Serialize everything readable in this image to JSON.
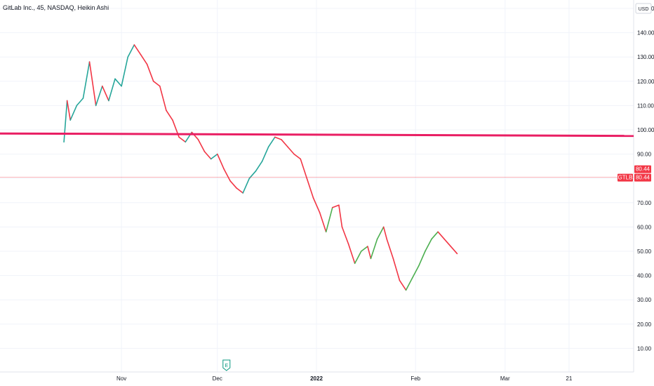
{
  "chart_data": {
    "type": "candlestick",
    "title": "GitLab Inc., 45, NASDAQ, Heikin Ashi",
    "currency": "USD",
    "ylim": [
      0,
      150
    ],
    "y_ticks": [
      "150.00",
      "140.00",
      "130.00",
      "120.00",
      "110.00",
      "100.00",
      "90.00",
      "80.00",
      "70.00",
      "60.00",
      "50.00",
      "40.00",
      "30.00",
      "20.00",
      "10.00"
    ],
    "x_ticks": [
      {
        "label": "Nov",
        "date": "2021-11-01",
        "bold": false
      },
      {
        "label": "Dec",
        "date": "2021-12-01",
        "bold": false
      },
      {
        "label": "2022",
        "date": "2022-01-01",
        "bold": true
      },
      {
        "label": "Feb",
        "date": "2022-02-01",
        "bold": false
      },
      {
        "label": "Mar",
        "date": "2022-03-01",
        "bold": false
      },
      {
        "label": "21",
        "date": "2022-03-21",
        "bold": false
      }
    ],
    "date_range": [
      "2021-09-24",
      "2022-04-10"
    ],
    "series": [
      {
        "name": "GTLB",
        "points": [
          {
            "date": "2021-10-14",
            "close": 95,
            "up": true
          },
          {
            "date": "2021-10-15",
            "close": 112,
            "up": true
          },
          {
            "date": "2021-10-16",
            "close": 104,
            "up": false
          },
          {
            "date": "2021-10-18",
            "close": 110,
            "up": true
          },
          {
            "date": "2021-10-20",
            "close": 113,
            "up": true
          },
          {
            "date": "2021-10-22",
            "close": 128,
            "up": true
          },
          {
            "date": "2021-10-24",
            "close": 110,
            "up": false
          },
          {
            "date": "2021-10-26",
            "close": 118,
            "up": true
          },
          {
            "date": "2021-10-28",
            "close": 112,
            "up": false
          },
          {
            "date": "2021-10-30",
            "close": 121,
            "up": true
          },
          {
            "date": "2021-11-01",
            "close": 118,
            "up": true
          },
          {
            "date": "2021-11-03",
            "close": 130,
            "up": true
          },
          {
            "date": "2021-11-05",
            "close": 135,
            "up": true
          },
          {
            "date": "2021-11-07",
            "close": 131,
            "up": false
          },
          {
            "date": "2021-11-09",
            "close": 127,
            "up": false
          },
          {
            "date": "2021-11-11",
            "close": 120,
            "up": false
          },
          {
            "date": "2021-11-13",
            "close": 118,
            "up": false
          },
          {
            "date": "2021-11-15",
            "close": 108,
            "up": false
          },
          {
            "date": "2021-11-17",
            "close": 104,
            "up": false
          },
          {
            "date": "2021-11-19",
            "close": 97,
            "up": false
          },
          {
            "date": "2021-11-21",
            "close": 95,
            "up": false
          },
          {
            "date": "2021-11-23",
            "close": 99,
            "up": true
          },
          {
            "date": "2021-11-25",
            "close": 96,
            "up": false
          },
          {
            "date": "2021-11-27",
            "close": 91,
            "up": false
          },
          {
            "date": "2021-11-29",
            "close": 88,
            "up": false
          },
          {
            "date": "2021-12-01",
            "close": 90,
            "up": true
          },
          {
            "date": "2021-12-03",
            "close": 84,
            "up": false
          },
          {
            "date": "2021-12-05",
            "close": 79,
            "up": false
          },
          {
            "date": "2021-12-07",
            "close": 76,
            "up": false
          },
          {
            "date": "2021-12-09",
            "close": 74,
            "up": false
          },
          {
            "date": "2021-12-11",
            "close": 80,
            "up": true
          },
          {
            "date": "2021-12-13",
            "close": 83,
            "up": true
          },
          {
            "date": "2021-12-15",
            "close": 87,
            "up": true
          },
          {
            "date": "2021-12-17",
            "close": 93,
            "up": true
          },
          {
            "date": "2021-12-19",
            "close": 97,
            "up": true
          },
          {
            "date": "2021-12-21",
            "close": 96,
            "up": false
          },
          {
            "date": "2021-12-23",
            "close": 93,
            "up": false
          },
          {
            "date": "2021-12-25",
            "close": 90,
            "up": false
          },
          {
            "date": "2021-12-27",
            "close": 88,
            "up": false
          },
          {
            "date": "2021-12-29",
            "close": 80,
            "up": false
          },
          {
            "date": "2021-12-31",
            "close": 72,
            "up": false
          },
          {
            "date": "2022-01-02",
            "close": 66,
            "up": false
          },
          {
            "date": "2022-01-04",
            "close": 58,
            "up": false
          },
          {
            "date": "2022-01-05",
            "close": 63,
            "up": true
          },
          {
            "date": "2022-01-06",
            "close": 68,
            "up": true
          },
          {
            "date": "2022-01-08",
            "close": 69,
            "up": false
          },
          {
            "date": "2022-01-09",
            "close": 60,
            "up": false
          },
          {
            "date": "2022-01-11",
            "close": 53,
            "up": false
          },
          {
            "date": "2022-01-13",
            "close": 45,
            "up": false
          },
          {
            "date": "2022-01-15",
            "close": 50,
            "up": true
          },
          {
            "date": "2022-01-17",
            "close": 52,
            "up": true
          },
          {
            "date": "2022-01-18",
            "close": 47,
            "up": false
          },
          {
            "date": "2022-01-20",
            "close": 55,
            "up": true
          },
          {
            "date": "2022-01-22",
            "close": 60,
            "up": true
          },
          {
            "date": "2022-01-23",
            "close": 55,
            "up": false
          },
          {
            "date": "2022-01-25",
            "close": 47,
            "up": false
          },
          {
            "date": "2022-01-27",
            "close": 38,
            "up": false
          },
          {
            "date": "2022-01-29",
            "close": 34,
            "up": false
          },
          {
            "date": "2022-01-31",
            "close": 39,
            "up": true
          },
          {
            "date": "2022-02-02",
            "close": 44,
            "up": true
          },
          {
            "date": "2022-02-04",
            "close": 50,
            "up": true
          },
          {
            "date": "2022-02-06",
            "close": 55,
            "up": true
          },
          {
            "date": "2022-02-08",
            "close": 58,
            "up": true
          },
          {
            "date": "2022-02-10",
            "close": 55,
            "up": false
          },
          {
            "date": "2022-02-12",
            "close": 52,
            "up": false
          },
          {
            "date": "2022-02-14",
            "close": 49,
            "up": false
          }
        ]
      }
    ],
    "horizontal_line": {
      "y_start": 98.5,
      "y_end": 97.5,
      "color": "#e91e63"
    },
    "last_price": {
      "value": "80.44",
      "symbol": "GTLB",
      "y": 80.44,
      "color": "#f23645"
    },
    "colors": {
      "up": "#26a69a",
      "up_bright": "#4caf50",
      "down": "#f23645",
      "grid": "#f0f3fa",
      "axis_text": "#131722"
    },
    "earnings_marker": {
      "label": "E",
      "date": "2021-12-01",
      "color": "#089981"
    }
  }
}
